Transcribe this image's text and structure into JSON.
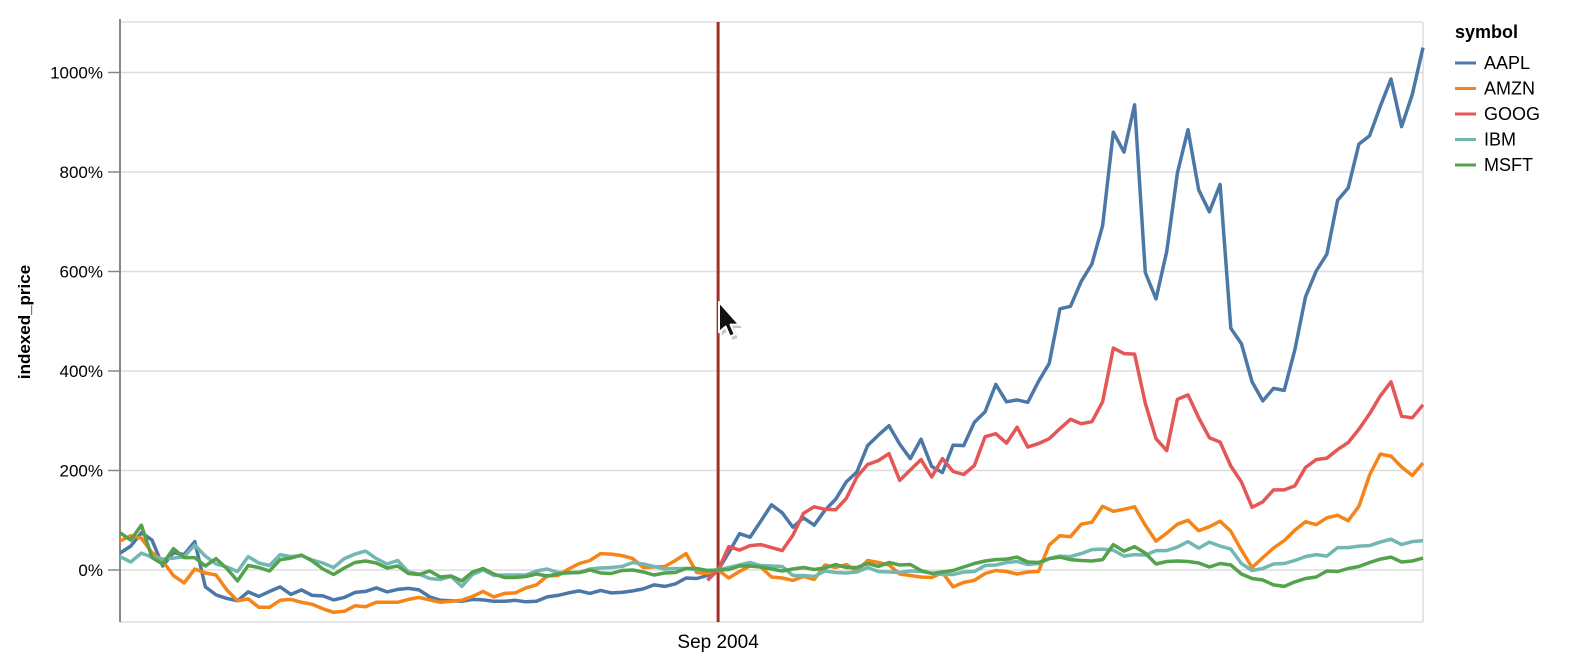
{
  "chart_data": {
    "type": "line",
    "title": "",
    "xlabel": "",
    "ylabel": "indexed_price",
    "legend_title": "symbol",
    "legend_position": "right",
    "grid": true,
    "ylim": [
      -105,
      1100
    ],
    "y_tick_unit": "%",
    "y_ticks": [
      {
        "label": "0%",
        "value": 0
      },
      {
        "label": "200%",
        "value": 200
      },
      {
        "label": "400%",
        "value": 400
      },
      {
        "label": "600%",
        "value": 600
      },
      {
        "label": "800%",
        "value": 800
      },
      {
        "label": "1000%",
        "value": 1000
      }
    ],
    "index_rule": {
      "label": "Sep 2004",
      "x": "2004-09",
      "color": "#a42f26"
    },
    "colors": {
      "grid": "#dddddd",
      "border": "#dddddd",
      "axis": "#888888",
      "text": "#000000"
    },
    "x_interval": "month",
    "x_start": "2000-01",
    "x_end": "2010-03",
    "x_months": [
      "2000-01",
      "2000-02",
      "2000-03",
      "2000-04",
      "2000-05",
      "2000-06",
      "2000-07",
      "2000-08",
      "2000-09",
      "2000-10",
      "2000-11",
      "2000-12",
      "2001-01",
      "2001-02",
      "2001-03",
      "2001-04",
      "2001-05",
      "2001-06",
      "2001-07",
      "2001-08",
      "2001-09",
      "2001-10",
      "2001-11",
      "2001-12",
      "2002-01",
      "2002-02",
      "2002-03",
      "2002-04",
      "2002-05",
      "2002-06",
      "2002-07",
      "2002-08",
      "2002-09",
      "2002-10",
      "2002-11",
      "2002-12",
      "2003-01",
      "2003-02",
      "2003-03",
      "2003-04",
      "2003-05",
      "2003-06",
      "2003-07",
      "2003-08",
      "2003-09",
      "2003-10",
      "2003-11",
      "2003-12",
      "2004-01",
      "2004-02",
      "2004-03",
      "2004-04",
      "2004-05",
      "2004-06",
      "2004-07",
      "2004-08",
      "2004-09",
      "2004-10",
      "2004-11",
      "2004-12",
      "2005-01",
      "2005-02",
      "2005-03",
      "2005-04",
      "2005-05",
      "2005-06",
      "2005-07",
      "2005-08",
      "2005-09",
      "2005-10",
      "2005-11",
      "2005-12",
      "2006-01",
      "2006-02",
      "2006-03",
      "2006-04",
      "2006-05",
      "2006-06",
      "2006-07",
      "2006-08",
      "2006-09",
      "2006-10",
      "2006-11",
      "2006-12",
      "2007-01",
      "2007-02",
      "2007-03",
      "2007-04",
      "2007-05",
      "2007-06",
      "2007-07",
      "2007-08",
      "2007-09",
      "2007-10",
      "2007-11",
      "2007-12",
      "2008-01",
      "2008-02",
      "2008-03",
      "2008-04",
      "2008-05",
      "2008-06",
      "2008-07",
      "2008-08",
      "2008-09",
      "2008-10",
      "2008-11",
      "2008-12",
      "2009-01",
      "2009-02",
      "2009-03",
      "2009-04",
      "2009-05",
      "2009-06",
      "2009-07",
      "2009-08",
      "2009-09",
      "2009-10",
      "2009-11",
      "2009-12",
      "2010-01",
      "2010-02",
      "2010-03"
    ],
    "value_unit": "percent change from Sep 2004 price",
    "series": [
      {
        "name": "AAPL",
        "color": "#4c78a8",
        "values": [
          34,
          48,
          75,
          60,
          8,
          35,
          31,
          57,
          -34,
          -50,
          -57,
          -62,
          -44,
          -53,
          -43,
          -34,
          -49,
          -40,
          -51,
          -52,
          -60,
          -55,
          -45,
          -43,
          -36,
          -44,
          -39,
          -37,
          -40,
          -54,
          -61,
          -62,
          -63,
          -59,
          -60,
          -63,
          -63,
          -61,
          -64,
          -63,
          -54,
          -51,
          -46,
          -42,
          -47,
          -41,
          -46,
          -45,
          -42,
          -38,
          -30,
          -33,
          -28,
          -16,
          -17,
          -11,
          0,
          35,
          73,
          66,
          98,
          131,
          115,
          86,
          105,
          90,
          120,
          142,
          177,
          197,
          250,
          271,
          290,
          253,
          224,
          263,
          208,
          196,
          251,
          250,
          297,
          318,
          373,
          338,
          342,
          337,
          379,
          415,
          525,
          530,
          580,
          615,
          692,
          880,
          840,
          935,
          598,
          545,
          640,
          798,
          885,
          764,
          720,
          775,
          486,
          455,
          378,
          340,
          365,
          361,
          442,
          549,
          601,
          635,
          743,
          768,
          856,
          873,
          932,
          987,
          891,
          956,
          1050
        ]
      },
      {
        "name": "AMZN",
        "color": "#f58518",
        "values": [
          58,
          69,
          64,
          35,
          18,
          -11,
          -26,
          2,
          -6,
          -10,
          -40,
          -62,
          -58,
          -75,
          -75,
          -61,
          -59,
          -65,
          -69,
          -78,
          -85,
          -83,
          -72,
          -74,
          -65,
          -65,
          -65,
          -59,
          -55,
          -60,
          -65,
          -63,
          -61,
          -53,
          -43,
          -54,
          -47,
          -46,
          -36,
          -30,
          -12,
          -11,
          2,
          13,
          19,
          33,
          32,
          29,
          23,
          5,
          6,
          7,
          19,
          33,
          -5,
          -7,
          0,
          -16,
          -3,
          8,
          6,
          -14,
          -16,
          -21,
          -13,
          -19,
          10,
          5,
          11,
          -2,
          19,
          15,
          10,
          -8,
          -11,
          -14,
          -15,
          -5,
          -34,
          -25,
          -21,
          -7,
          -1,
          -3,
          -8,
          -4,
          -3,
          50,
          69,
          67,
          92,
          96,
          128,
          118,
          122,
          127,
          90,
          58,
          74,
          92,
          100,
          79,
          87,
          98,
          78,
          40,
          5,
          25,
          44,
          59,
          80,
          97,
          91,
          105,
          110,
          99,
          128,
          191,
          233,
          229,
          207,
          190,
          215
        ]
      },
      {
        "name": "GOOG",
        "color": "#e45756",
        "values": [
          null,
          null,
          null,
          null,
          null,
          null,
          null,
          null,
          null,
          null,
          null,
          null,
          null,
          null,
          null,
          null,
          null,
          null,
          null,
          null,
          null,
          null,
          null,
          null,
          null,
          null,
          null,
          null,
          null,
          null,
          null,
          null,
          null,
          null,
          null,
          null,
          null,
          null,
          null,
          null,
          null,
          null,
          null,
          null,
          null,
          null,
          null,
          null,
          null,
          null,
          null,
          null,
          null,
          null,
          null,
          -21,
          0,
          47,
          40,
          49,
          51,
          45,
          39,
          70,
          114,
          127,
          122,
          121,
          144,
          187,
          212,
          220,
          234,
          180,
          201,
          222,
          187,
          224,
          198,
          192,
          210,
          268,
          274,
          255,
          287,
          247,
          254,
          264,
          284,
          303,
          294,
          298,
          338,
          446,
          435,
          434,
          335,
          264,
          240,
          343,
          352,
          306,
          266,
          257,
          209,
          177,
          126,
          137,
          161,
          161,
          169,
          206,
          222,
          225,
          242,
          256,
          283,
          314,
          350,
          378,
          309,
          306,
          332
        ]
      },
      {
        "name": "IBM",
        "color": "#72b7b2",
        "values": [
          27,
          16,
          34,
          26,
          22,
          24,
          27,
          50,
          28,
          12,
          6,
          -3,
          27,
          14,
          9,
          31,
          27,
          29,
          20,
          14,
          5,
          23,
          32,
          38,
          23,
          12,
          19,
          -4,
          -8,
          -17,
          -19,
          -13,
          -33,
          -9,
          0,
          -11,
          -10,
          -10,
          -10,
          -2,
          2,
          -5,
          -6,
          -5,
          2,
          4,
          5,
          7,
          15,
          12,
          7,
          2,
          3,
          3,
          1,
          -1,
          0,
          5,
          10,
          15,
          9,
          8,
          7,
          -11,
          -11,
          -13,
          -2,
          -5,
          -6,
          -4,
          5,
          -3,
          -4,
          -5,
          -2,
          -3,
          -6,
          -9,
          -9,
          -4,
          -3,
          9,
          10,
          15,
          17,
          11,
          13,
          23,
          28,
          27,
          33,
          41,
          42,
          40,
          28,
          31,
          30,
          39,
          39,
          46,
          57,
          44,
          56,
          48,
          42,
          13,
          -1,
          3,
          12,
          13,
          19,
          27,
          31,
          28,
          45,
          45,
          48,
          49,
          56,
          62,
          51,
          57,
          59
        ]
      },
      {
        "name": "MSFT",
        "color": "#54a24b",
        "values": [
          75,
          60,
          90,
          25,
          12,
          43,
          25,
          25,
          8,
          23,
          3,
          -22,
          9,
          5,
          -2,
          21,
          24,
          30,
          18,
          2,
          -9,
          4,
          15,
          18,
          14,
          4,
          8,
          -7,
          -9,
          -2,
          -14,
          -12,
          -22,
          -4,
          3,
          -8,
          -15,
          -15,
          -13,
          -8,
          -12,
          -8,
          -5,
          -5,
          0,
          -6,
          -7,
          -1,
          0,
          -4,
          -10,
          -6,
          -5,
          3,
          3,
          -1,
          0,
          1,
          8,
          8,
          6,
          2,
          -2,
          2,
          5,
          1,
          4,
          11,
          5,
          5,
          13,
          7,
          15,
          10,
          11,
          -1,
          -7,
          -4,
          -1,
          6,
          13,
          18,
          21,
          22,
          26,
          16,
          15,
          23,
          26,
          21,
          19,
          18,
          21,
          51,
          38,
          47,
          34,
          12,
          17,
          18,
          17,
          14,
          6,
          13,
          10,
          -8,
          -17,
          -20,
          -30,
          -33,
          -24,
          -17,
          -14,
          -2,
          -3,
          3,
          7,
          15,
          22,
          26,
          16,
          18,
          24
        ]
      }
    ]
  }
}
